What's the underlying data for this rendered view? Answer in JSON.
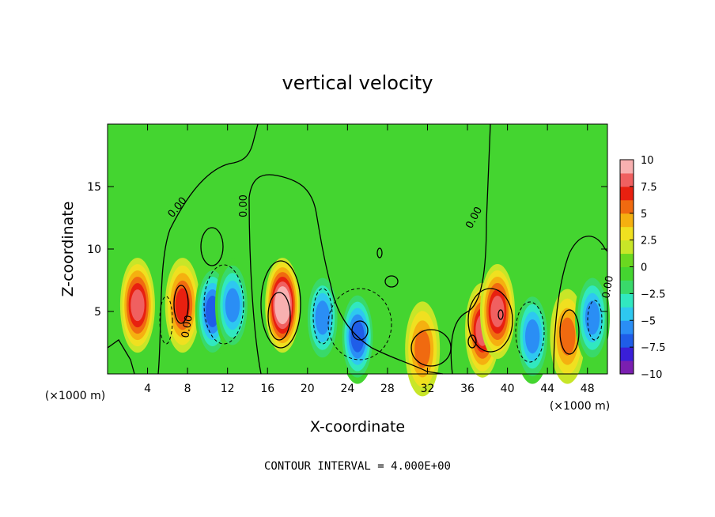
{
  "chart_data": {
    "type": "heatmap",
    "title": "vertical velocity",
    "xlabel": "X-coordinate",
    "ylabel": "Z-coordinate",
    "x_scale_note": "(×1000 m)",
    "xlim": [
      0,
      50
    ],
    "ylim": [
      0,
      20
    ],
    "x_ticks": [
      4,
      8,
      12,
      16,
      20,
      24,
      28,
      32,
      36,
      40,
      44,
      48
    ],
    "y_ticks": [
      5,
      10,
      15
    ],
    "colorbar": {
      "min": -10,
      "max": 10,
      "tick_labels": [
        "10",
        "7.5",
        "5",
        "2.5",
        "0",
        "−2.5",
        "−5",
        "−7.5",
        "−10"
      ],
      "colors": [
        "#7a1fb0",
        "#3a1fd8",
        "#1f5de8",
        "#2a8ef5",
        "#2ec8f0",
        "#31e8c0",
        "#39d96a",
        "#44d530",
        "#6ad820",
        "#c8e628",
        "#f0e020",
        "#f5b010",
        "#f06a10",
        "#e82010",
        "#f06060",
        "#f8b0b0"
      ]
    },
    "contour_interval": "CONTOUR INTERVAL = 4.000E+00",
    "contour_labels": [
      "0.00",
      "0.00",
      "0.00",
      "0.00",
      "0.00",
      "0.00"
    ],
    "features": [
      {
        "x": 3.0,
        "z": 5.5,
        "w": 7.5
      },
      {
        "x": 7.5,
        "z": 5.5,
        "w": 6.0
      },
      {
        "x": 10.5,
        "z": 5.0,
        "w": -7.0
      },
      {
        "x": 12.5,
        "z": 5.5,
        "w": -6.5
      },
      {
        "x": 17.5,
        "z": 5.5,
        "w": 10.0
      },
      {
        "x": 21.5,
        "z": 4.5,
        "w": -6.0
      },
      {
        "x": 25.0,
        "z": 3.0,
        "w": -8.0
      },
      {
        "x": 31.5,
        "z": 2.0,
        "w": 4.5
      },
      {
        "x": 37.5,
        "z": 3.5,
        "w": 7.0
      },
      {
        "x": 39.0,
        "z": 5.0,
        "w": 8.0
      },
      {
        "x": 42.5,
        "z": 3.0,
        "w": -6.0
      },
      {
        "x": 46.0,
        "z": 3.0,
        "w": 5.5
      },
      {
        "x": 48.5,
        "z": 4.5,
        "w": -6.5
      }
    ]
  }
}
